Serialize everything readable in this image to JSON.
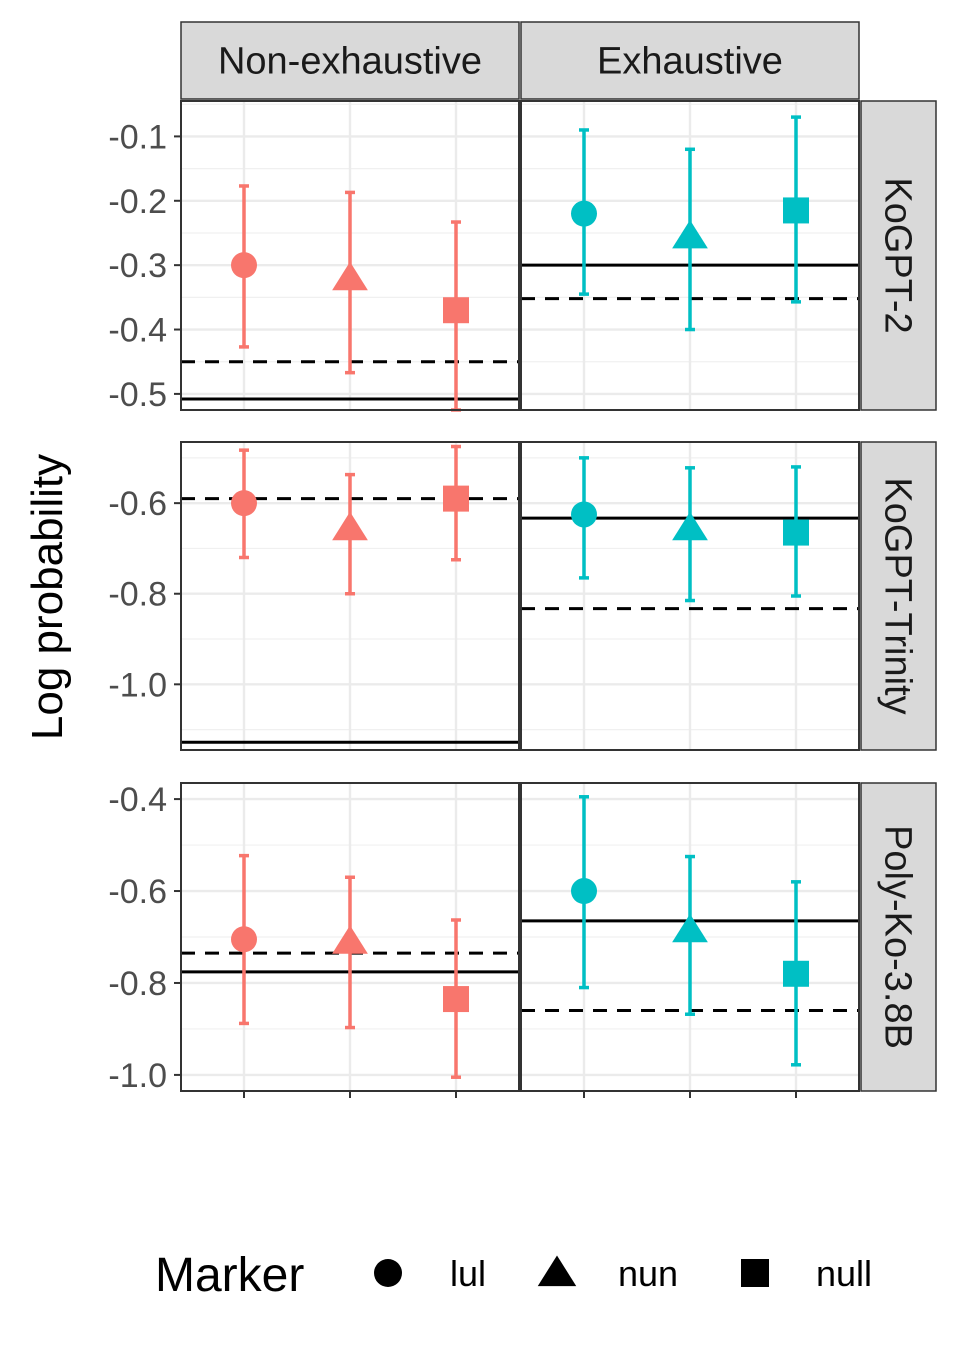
{
  "chart_data": {
    "type": "faceted-pointrange",
    "ylabel": "Log probability",
    "columns": [
      "Non-exhaustive",
      "Exhaustive"
    ],
    "categories": [
      "lul",
      "nun",
      "null"
    ],
    "colors": {
      "Non-exhaustive": "#F8766D",
      "Exhaustive": "#00BFC4"
    },
    "legend": {
      "title": "Marker",
      "position": "bottom",
      "items": [
        {
          "label": "lul",
          "shape": "circle"
        },
        {
          "label": "nun",
          "shape": "triangle"
        },
        {
          "label": "null",
          "shape": "square"
        }
      ]
    },
    "line_styles": {
      "solid": "solid reference line",
      "dashed": "dashed reference line"
    },
    "panels": [
      {
        "row": "KoGPT-2",
        "ylim": [
          -0.525,
          -0.045
        ],
        "yticks": [
          -0.1,
          -0.2,
          -0.3,
          -0.4,
          -0.5
        ],
        "ytick_labels": [
          "-0.1",
          "-0.2",
          "-0.3",
          "-0.4",
          "-0.5"
        ],
        "cells": {
          "Non-exhaustive": {
            "points": [
              {
                "marker": "lul",
                "mean": -0.3,
                "low": -0.427,
                "high": -0.177
              },
              {
                "marker": "nun",
                "mean": -0.32,
                "low": -0.467,
                "high": -0.187
              },
              {
                "marker": "null",
                "mean": -0.37,
                "low": -0.525,
                "high": -0.233
              }
            ],
            "solid": -0.508,
            "dashed": -0.45
          },
          "Exhaustive": {
            "points": [
              {
                "marker": "lul",
                "mean": -0.22,
                "low": -0.345,
                "high": -0.09
              },
              {
                "marker": "nun",
                "mean": -0.255,
                "low": -0.4,
                "high": -0.12
              },
              {
                "marker": "null",
                "mean": -0.215,
                "low": -0.357,
                "high": -0.07
              }
            ],
            "solid": -0.3,
            "dashed": -0.352
          }
        }
      },
      {
        "row": "KoGPT-Trinity",
        "ylim": [
          -1.145,
          -0.465
        ],
        "yticks": [
          -0.6,
          -0.8,
          -1.0
        ],
        "ytick_labels": [
          "-0.6",
          "-0.8",
          "-1.0"
        ],
        "cells": {
          "Non-exhaustive": {
            "points": [
              {
                "marker": "lul",
                "mean": -0.6,
                "low": -0.72,
                "high": -0.483
              },
              {
                "marker": "nun",
                "mean": -0.655,
                "low": -0.8,
                "high": -0.537
              },
              {
                "marker": "null",
                "mean": -0.59,
                "low": -0.725,
                "high": -0.475
              }
            ],
            "solid": -1.128,
            "dashed": -0.59
          },
          "Exhaustive": {
            "points": [
              {
                "marker": "lul",
                "mean": -0.625,
                "low": -0.765,
                "high": -0.5
              },
              {
                "marker": "nun",
                "mean": -0.655,
                "low": -0.815,
                "high": -0.522
              },
              {
                "marker": "null",
                "mean": -0.665,
                "low": -0.805,
                "high": -0.52
              }
            ],
            "solid": -0.633,
            "dashed": -0.833
          }
        }
      },
      {
        "row": "Poly-Ko-3.8B",
        "ylim": [
          -1.035,
          -0.365
        ],
        "yticks": [
          -0.4,
          -0.6,
          -0.8,
          -1.0
        ],
        "ytick_labels": [
          "-0.4",
          "-0.6",
          "-0.8",
          "-1.0"
        ],
        "cells": {
          "Non-exhaustive": {
            "points": [
              {
                "marker": "lul",
                "mean": -0.705,
                "low": -0.888,
                "high": -0.523
              },
              {
                "marker": "nun",
                "mean": -0.71,
                "low": -0.897,
                "high": -0.57
              },
              {
                "marker": "null",
                "mean": -0.835,
                "low": -1.005,
                "high": -0.663
              }
            ],
            "solid": -0.776,
            "dashed": -0.735
          },
          "Exhaustive": {
            "points": [
              {
                "marker": "lul",
                "mean": -0.6,
                "low": -0.81,
                "high": -0.395
              },
              {
                "marker": "nun",
                "mean": -0.685,
                "low": -0.868,
                "high": -0.525
              },
              {
                "marker": "null",
                "mean": -0.78,
                "low": -0.978,
                "high": -0.58
              }
            ],
            "solid": -0.665,
            "dashed": -0.86
          }
        }
      }
    ]
  }
}
